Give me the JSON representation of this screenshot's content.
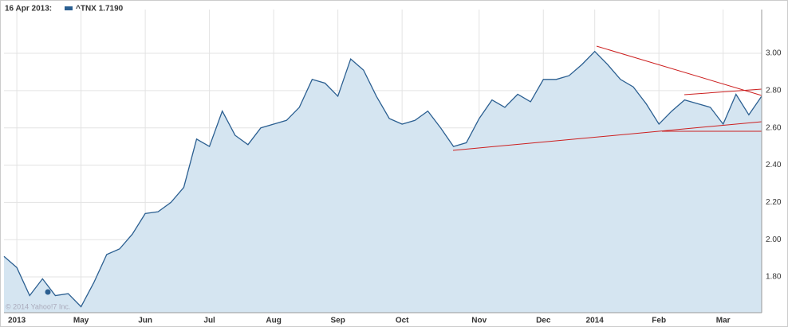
{
  "chart_data": {
    "type": "area",
    "header_date": "16 Apr 2013:",
    "legend_label": "^TNX 1.7190",
    "watermark": "© 2014 Yahoo!7 Inc.",
    "color": "#2b5f91",
    "fill": "#d5e5f1",
    "categories": [
      null,
      "2013",
      null,
      null,
      null,
      null,
      "May",
      null,
      null,
      null,
      null,
      "Jun",
      null,
      null,
      null,
      null,
      "Jul",
      null,
      null,
      null,
      null,
      "Aug",
      null,
      null,
      null,
      null,
      "Sep",
      null,
      null,
      null,
      null,
      "Oct",
      null,
      null,
      null,
      null,
      null,
      "Nov",
      null,
      null,
      null,
      null,
      "Dec",
      null,
      null,
      null,
      "2014",
      null,
      null,
      null,
      null,
      "Feb",
      null,
      null,
      null,
      null,
      "Mar",
      null,
      null,
      null
    ],
    "values": [
      1.91,
      1.85,
      1.7,
      1.79,
      1.7,
      1.71,
      1.64,
      1.77,
      1.92,
      1.95,
      2.03,
      2.14,
      2.15,
      2.2,
      2.28,
      2.54,
      2.5,
      2.69,
      2.56,
      2.51,
      2.6,
      2.62,
      2.64,
      2.71,
      2.86,
      2.84,
      2.77,
      2.97,
      2.91,
      2.77,
      2.65,
      2.62,
      2.64,
      2.69,
      2.6,
      2.5,
      2.52,
      2.65,
      2.75,
      2.71,
      2.78,
      2.74,
      2.86,
      2.86,
      2.88,
      2.94,
      3.01,
      2.94,
      2.86,
      2.82,
      2.73,
      2.62,
      2.69,
      2.75,
      2.73,
      2.71,
      2.62,
      2.78,
      2.67,
      2.77
    ],
    "ylim": [
      1.608,
      3.235
    ],
    "yticks": [
      {
        "value": 1.8,
        "label": "1.80"
      },
      {
        "value": 2,
        "label": "2.00"
      },
      {
        "value": 2.2,
        "label": "2.20"
      },
      {
        "value": 2.4,
        "label": "2.40"
      },
      {
        "value": 2.6,
        "label": "2.60"
      },
      {
        "value": 2.8,
        "label": "2.80"
      },
      {
        "value": 3,
        "label": "3.00"
      }
    ],
    "grid": true
  }
}
